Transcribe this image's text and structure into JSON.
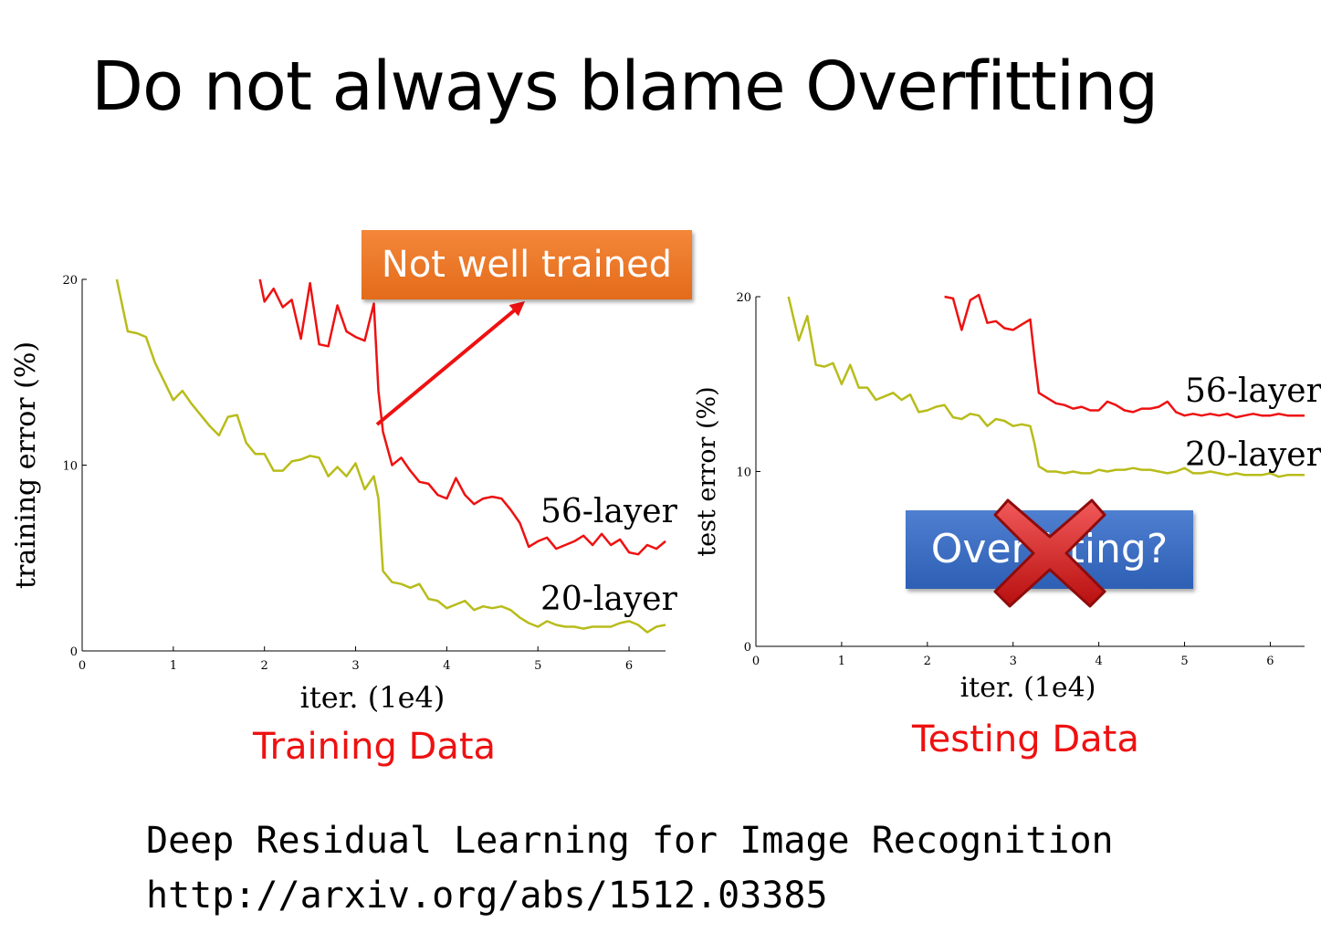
{
  "slide": {
    "title": "Do not always blame Overfitting",
    "callout_not_well_trained": "Not well trained",
    "overfitting_label": "Overfitting?",
    "reference_title": "Deep Residual Learning for Image Recognition",
    "reference_url": "http://arxiv.org/abs/1512.03385"
  },
  "colors": {
    "series_56": "#ee1111",
    "series_20": "#b8bc1a",
    "caption": "#ee1111",
    "callout": "#ed7b2d",
    "overfit_box": "#3c6cc4",
    "cross": "#d11a1a"
  },
  "icons": {
    "cross": "red-cross-icon",
    "arrow": "arrow-icon"
  },
  "chart_data": [
    {
      "type": "line",
      "caption": "Training Data",
      "xlabel": "iter. (1e4)",
      "ylabel": "training error (%)",
      "xlim": [
        0,
        6.4
      ],
      "ylim": [
        0,
        20
      ],
      "xticks": [
        0,
        1,
        2,
        3,
        4,
        5,
        6
      ],
      "yticks": [
        0,
        10,
        20
      ],
      "series": [
        {
          "name": "56-layer",
          "x": [
            1.95,
            2.0,
            2.1,
            2.2,
            2.3,
            2.4,
            2.5,
            2.6,
            2.7,
            2.8,
            2.9,
            3.0,
            3.1,
            3.2,
            3.25,
            3.3,
            3.4,
            3.5,
            3.6,
            3.7,
            3.8,
            3.9,
            4.0,
            4.1,
            4.2,
            4.3,
            4.4,
            4.5,
            4.6,
            4.7,
            4.8,
            4.9,
            5.0,
            5.1,
            5.2,
            5.3,
            5.4,
            5.5,
            5.6,
            5.7,
            5.8,
            5.9,
            6.0,
            6.1,
            6.2,
            6.3,
            6.4
          ],
          "y": [
            20.0,
            18.8,
            19.5,
            18.5,
            18.9,
            16.8,
            19.8,
            16.5,
            16.4,
            18.6,
            17.2,
            16.9,
            16.7,
            18.7,
            14.0,
            11.8,
            10.0,
            10.4,
            9.7,
            9.1,
            9.0,
            8.4,
            8.2,
            9.3,
            8.4,
            7.9,
            8.2,
            8.3,
            8.2,
            7.6,
            6.9,
            5.6,
            5.9,
            6.1,
            5.5,
            5.7,
            5.9,
            6.2,
            5.7,
            6.3,
            5.7,
            6.0,
            5.3,
            5.2,
            5.7,
            5.5,
            5.9
          ]
        },
        {
          "name": "20-layer",
          "x": [
            0.38,
            0.5,
            0.6,
            0.7,
            0.8,
            0.9,
            1.0,
            1.1,
            1.2,
            1.3,
            1.4,
            1.5,
            1.6,
            1.7,
            1.8,
            1.9,
            2.0,
            2.1,
            2.2,
            2.3,
            2.4,
            2.5,
            2.6,
            2.7,
            2.8,
            2.9,
            3.0,
            3.1,
            3.2,
            3.25,
            3.3,
            3.4,
            3.5,
            3.6,
            3.7,
            3.8,
            3.9,
            4.0,
            4.1,
            4.2,
            4.3,
            4.4,
            4.5,
            4.6,
            4.7,
            4.8,
            4.9,
            5.0,
            5.1,
            5.2,
            5.3,
            5.4,
            5.5,
            5.6,
            5.7,
            5.8,
            5.9,
            6.0,
            6.1,
            6.2,
            6.3,
            6.4
          ],
          "y": [
            20.0,
            17.2,
            17.1,
            16.9,
            15.5,
            14.5,
            13.5,
            14.0,
            13.3,
            12.7,
            12.1,
            11.6,
            12.6,
            12.7,
            11.2,
            10.6,
            10.6,
            9.7,
            9.7,
            10.2,
            10.3,
            10.5,
            10.4,
            9.4,
            9.9,
            9.4,
            10.1,
            8.7,
            9.4,
            8.2,
            4.3,
            3.7,
            3.6,
            3.4,
            3.6,
            2.8,
            2.7,
            2.3,
            2.5,
            2.7,
            2.2,
            2.4,
            2.3,
            2.4,
            2.2,
            1.8,
            1.5,
            1.3,
            1.6,
            1.4,
            1.3,
            1.3,
            1.2,
            1.3,
            1.3,
            1.3,
            1.5,
            1.6,
            1.4,
            1.0,
            1.3,
            1.4
          ]
        }
      ]
    },
    {
      "type": "line",
      "caption": "Testing Data",
      "xlabel": "iter. (1e4)",
      "ylabel": "test error (%)",
      "xlim": [
        0,
        6.4
      ],
      "ylim": [
        0,
        20
      ],
      "xticks": [
        0,
        1,
        2,
        3,
        4,
        5,
        6
      ],
      "yticks": [
        0,
        10,
        20
      ],
      "series": [
        {
          "name": "56-layer",
          "x": [
            2.2,
            2.3,
            2.4,
            2.5,
            2.6,
            2.7,
            2.8,
            2.9,
            3.0,
            3.1,
            3.2,
            3.25,
            3.3,
            3.4,
            3.5,
            3.6,
            3.7,
            3.8,
            3.9,
            4.0,
            4.1,
            4.2,
            4.3,
            4.4,
            4.5,
            4.6,
            4.7,
            4.8,
            4.9,
            5.0,
            5.1,
            5.2,
            5.3,
            5.4,
            5.5,
            5.6,
            5.7,
            5.8,
            5.9,
            6.0,
            6.1,
            6.2,
            6.3,
            6.4
          ],
          "y": [
            20.0,
            19.9,
            18.1,
            19.8,
            20.1,
            18.5,
            18.6,
            18.2,
            18.1,
            18.4,
            18.7,
            16.5,
            14.5,
            14.2,
            13.9,
            13.8,
            13.6,
            13.7,
            13.5,
            13.5,
            14.0,
            13.8,
            13.5,
            13.4,
            13.6,
            13.6,
            13.7,
            14.0,
            13.4,
            13.2,
            13.3,
            13.2,
            13.3,
            13.2,
            13.3,
            13.1,
            13.2,
            13.3,
            13.2,
            13.2,
            13.3,
            13.2,
            13.2,
            13.2
          ]
        },
        {
          "name": "20-layer",
          "x": [
            0.38,
            0.5,
            0.6,
            0.7,
            0.8,
            0.9,
            1.0,
            1.1,
            1.2,
            1.3,
            1.4,
            1.5,
            1.6,
            1.7,
            1.8,
            1.9,
            2.0,
            2.1,
            2.2,
            2.3,
            2.4,
            2.5,
            2.6,
            2.7,
            2.8,
            2.9,
            3.0,
            3.1,
            3.2,
            3.25,
            3.3,
            3.4,
            3.5,
            3.6,
            3.7,
            3.8,
            3.9,
            4.0,
            4.1,
            4.2,
            4.3,
            4.4,
            4.5,
            4.6,
            4.7,
            4.8,
            4.9,
            5.0,
            5.1,
            5.2,
            5.3,
            5.4,
            5.5,
            5.6,
            5.7,
            5.8,
            5.9,
            6.0,
            6.1,
            6.2,
            6.3,
            6.4
          ],
          "y": [
            20.0,
            17.5,
            18.9,
            16.1,
            16.0,
            16.2,
            15.0,
            16.1,
            14.8,
            14.8,
            14.1,
            14.3,
            14.5,
            14.1,
            14.4,
            13.4,
            13.5,
            13.7,
            13.8,
            13.1,
            13.0,
            13.3,
            13.2,
            12.6,
            13.0,
            12.9,
            12.6,
            12.7,
            12.6,
            11.6,
            10.3,
            10.0,
            10.0,
            9.9,
            10.0,
            9.9,
            9.9,
            10.1,
            10.0,
            10.1,
            10.1,
            10.2,
            10.1,
            10.1,
            10.0,
            9.9,
            10.0,
            10.2,
            9.9,
            9.9,
            10.0,
            9.9,
            9.8,
            9.9,
            9.8,
            9.8,
            9.8,
            9.9,
            9.7,
            9.8,
            9.8,
            9.8
          ]
        }
      ]
    }
  ]
}
